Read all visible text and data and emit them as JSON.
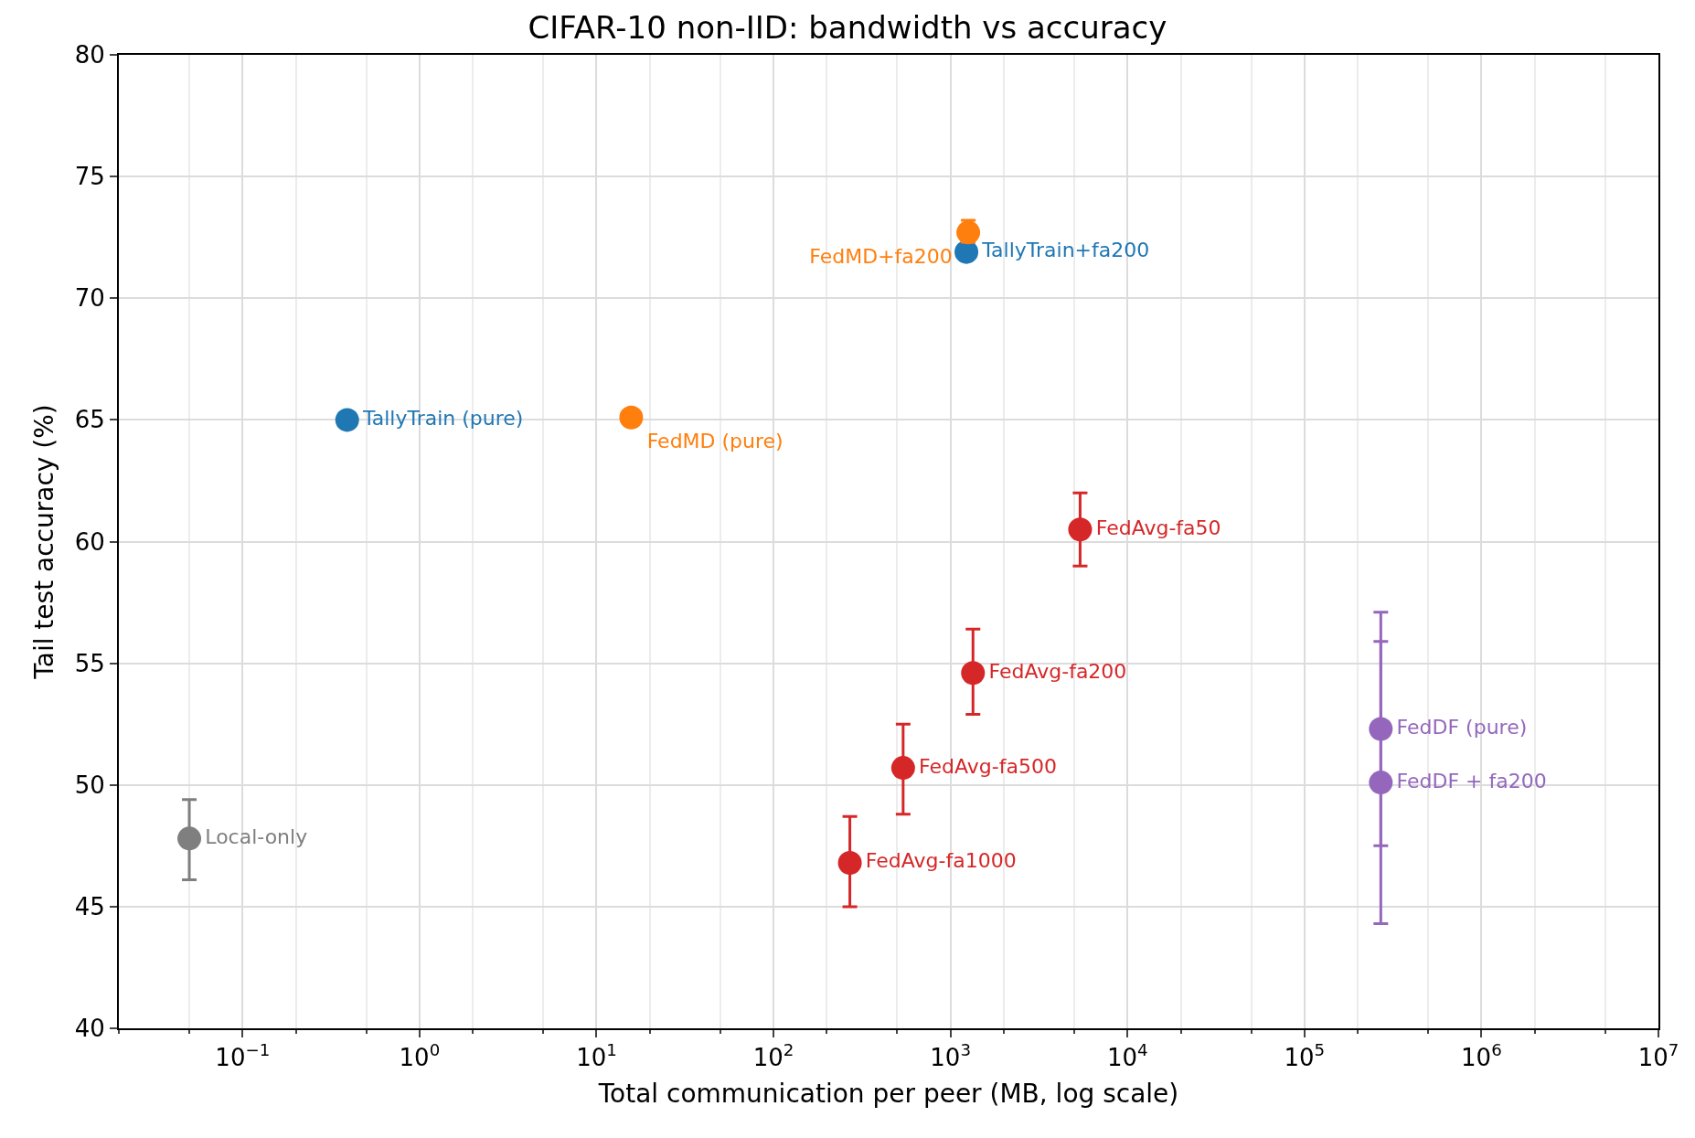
{
  "chart_data": {
    "type": "scatter",
    "title": "CIFAR-10 non-IID: bandwidth vs accuracy",
    "xlabel": "Total communication per peer (MB, log scale)",
    "ylabel": "Tail test accuracy (%)",
    "log": "x",
    "grid": true,
    "legend": false,
    "marker": "circle",
    "xlim": [
      0.02,
      10000000
    ],
    "ylim": [
      40,
      80
    ],
    "xticks": [
      {
        "value": 0.1,
        "label": "10$^{−1}$"
      },
      {
        "value": 1,
        "label": "10$^{0}$"
      },
      {
        "value": 10,
        "label": "10$^{1}$"
      },
      {
        "value": 100,
        "label": "10$^{2}$"
      },
      {
        "value": 1000,
        "label": "10$^{3}$"
      },
      {
        "value": 10000,
        "label": "10$^{4}$"
      },
      {
        "value": 100000,
        "label": "10$^{5}$"
      },
      {
        "value": 1000000,
        "label": "10$^{6}$"
      },
      {
        "value": 10000000,
        "label": "10$^{7}$"
      }
    ],
    "yticks": [
      40,
      45,
      50,
      55,
      60,
      65,
      70,
      75,
      80
    ],
    "series": [
      {
        "name": "Local-only",
        "color": "#7f7f7f",
        "x": [
          0.05
        ],
        "values": [
          47.8
        ],
        "errors": [
          [
            46.1,
            49.4
          ]
        ]
      },
      {
        "name": "TallyTrain (pure)",
        "color": "#1f77b4",
        "x": [
          0.39
        ],
        "values": [
          65.0
        ]
      },
      {
        "name": "FedMD (pure)",
        "color": "#ff7f0e",
        "x": [
          15.7
        ],
        "values": [
          65.1
        ]
      },
      {
        "name": "TallyTrain+fa200",
        "color": "#1f77b4",
        "x": [
          1230
        ],
        "values": [
          71.9
        ]
      },
      {
        "name": "FedMD+fa200",
        "color": "#ff7f0e",
        "x": [
          1260
        ],
        "values": [
          72.7
        ],
        "errors": [
          [
            72.3,
            73.2
          ]
        ]
      },
      {
        "name": "FedAvg-fa50",
        "color": "#d62728",
        "x": [
          5400
        ],
        "values": [
          60.5
        ],
        "errors": [
          [
            59.0,
            62.0
          ]
        ]
      },
      {
        "name": "FedAvg-fa200",
        "color": "#d62728",
        "x": [
          1340
        ],
        "values": [
          54.6
        ],
        "errors": [
          [
            52.9,
            56.4
          ]
        ]
      },
      {
        "name": "FedAvg-fa500",
        "color": "#d62728",
        "x": [
          540
        ],
        "values": [
          50.7
        ],
        "errors": [
          [
            48.8,
            52.5
          ]
        ]
      },
      {
        "name": "FedAvg-fa1000",
        "color": "#d62728",
        "x": [
          270
        ],
        "values": [
          46.8
        ],
        "errors": [
          [
            45.0,
            48.7
          ]
        ]
      },
      {
        "name": "FedDF (pure)",
        "color": "#9467bd",
        "x": [
          270000
        ],
        "values": [
          52.3
        ],
        "errors": [
          [
            47.5,
            57.1
          ]
        ]
      },
      {
        "name": "FedDF + fa200",
        "color": "#9467bd",
        "x": [
          270000
        ],
        "values": [
          50.1
        ],
        "errors": [
          [
            44.3,
            55.9
          ]
        ]
      }
    ]
  }
}
